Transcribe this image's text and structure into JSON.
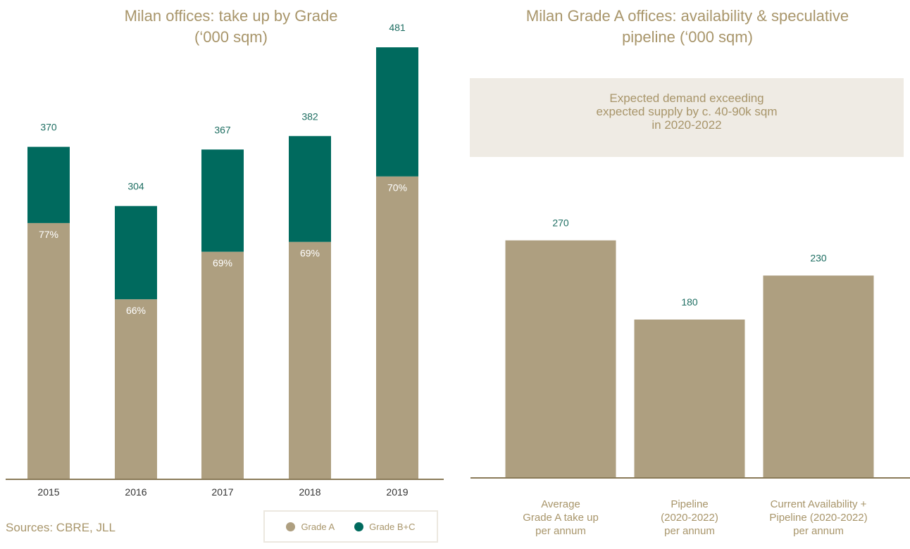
{
  "chart_data": [
    {
      "type": "bar",
      "stacked": true,
      "title": "Milan offices: take up by Grade\n(‘000 sqm)",
      "categories": [
        "2015",
        "2016",
        "2017",
        "2018",
        "2019"
      ],
      "series": [
        {
          "name": "Grade A",
          "share_labels": [
            "77%",
            "66%",
            "69%",
            "69%",
            "70%"
          ],
          "values": [
            285,
            200,
            253,
            264,
            337
          ],
          "color": "#ae9f80"
        },
        {
          "name": "Grade B+C",
          "values": [
            85,
            104,
            114,
            118,
            144
          ],
          "color": "#006a5e"
        }
      ],
      "totals": [
        370,
        304,
        367,
        382,
        481
      ],
      "ylim": [
        0,
        500
      ],
      "grid": false,
      "legend_position": "bottom-right",
      "source": "Sources: CBRE, JLL"
    },
    {
      "type": "bar",
      "title": "Milan Grade A offices: availability & speculative\npipeline (‘000 sqm)",
      "categories": [
        "Average\nGrade A take up\nper annum",
        "Pipeline\n(2020-2022)\nper annum",
        "Current Availability +\nPipeline (2020-2022)\nper annum"
      ],
      "values": [
        270,
        180,
        230
      ],
      "ylim": [
        0,
        500
      ],
      "color": "#ae9f80",
      "annotation": "Expected demand exceeding\nexpected supply by c. 40-90k sqm\nin 2020-2022"
    }
  ],
  "colors": {
    "text": "#a8956a",
    "value_label": "#1e6e62",
    "axis": "#8a7a58",
    "callout_bg": "#efebe4"
  }
}
